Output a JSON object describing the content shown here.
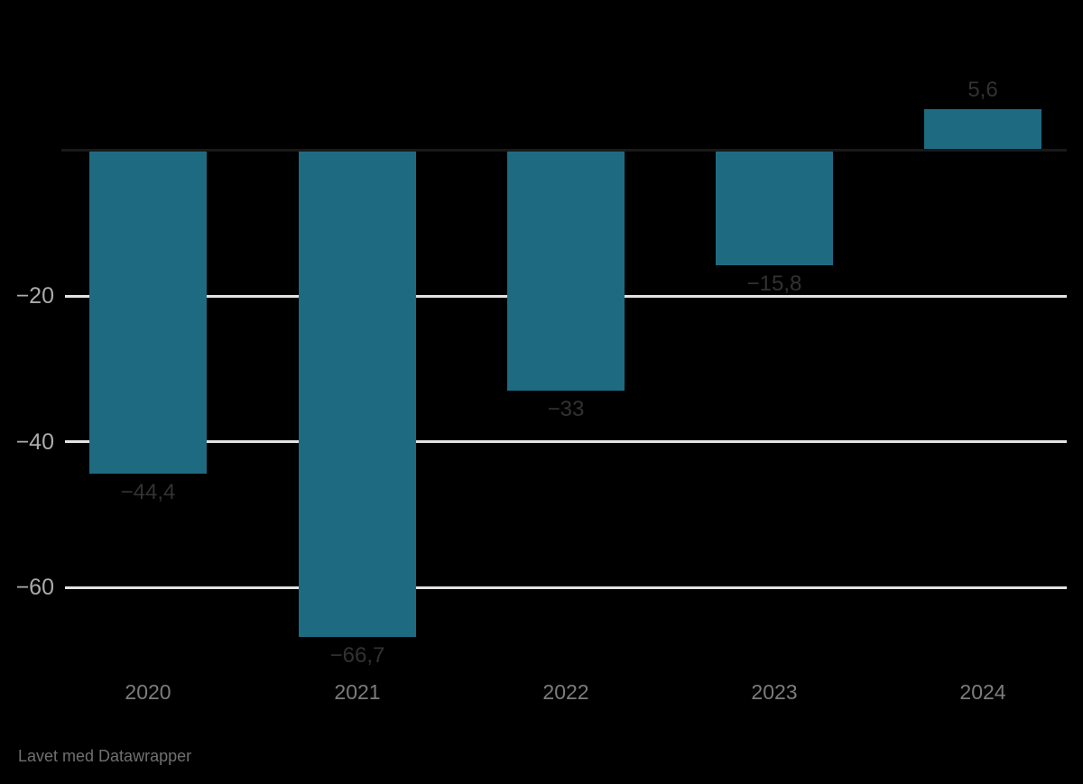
{
  "chart_data": {
    "type": "bar",
    "categories": [
      "2020",
      "2021",
      "2022",
      "2023",
      "2024"
    ],
    "values": [
      -44.4,
      -66.7,
      -33,
      -15.8,
      5.6
    ],
    "value_labels": [
      "−44,4",
      "−66,7",
      "−33",
      "−15,8",
      "5,6"
    ],
    "title": "",
    "xlabel": "",
    "ylabel": "",
    "ylim": [
      -70,
      10
    ],
    "yticks": [
      {
        "value": -20,
        "label": "−20"
      },
      {
        "value": -40,
        "label": "−40"
      },
      {
        "value": -60,
        "label": "−60"
      }
    ],
    "grid": true,
    "legend_position": "none",
    "bar_color": "#1e6b81",
    "decimal_separator": ","
  },
  "footer": {
    "made_with": "Lavet med Datawrapper"
  },
  "colors": {
    "background": "#000000",
    "bar": "#1e6b81",
    "gridline": "#e3e3e3",
    "baseline": "#191919",
    "y_tick_label": "#ababab",
    "x_label": "#7c7c7c",
    "value_label": "#323232",
    "footer_text": "#707070"
  }
}
